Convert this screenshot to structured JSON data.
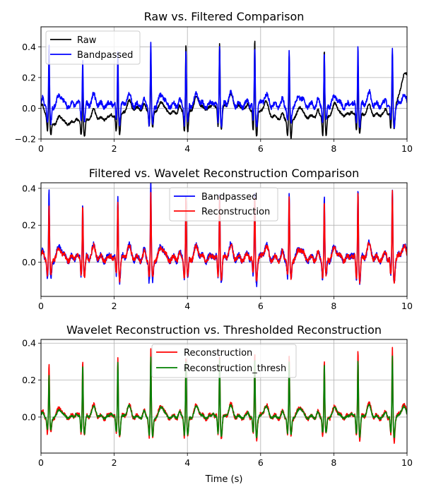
{
  "chart_data": [
    {
      "type": "line",
      "title": "Raw vs. Filtered Comparison",
      "xlabel": "",
      "ylabel": "",
      "xlim": [
        0,
        10
      ],
      "ylim": [
        -0.2,
        0.53
      ],
      "xticks": [
        0,
        2,
        4,
        6,
        8,
        10
      ],
      "yticks": [
        -0.2,
        0.0,
        0.2,
        0.4
      ],
      "ytick_labels": [
        "−0.2",
        "0.0",
        "0.2",
        "0.4"
      ],
      "grid": true,
      "legend_position": "upper-left",
      "r_peaks": [
        0.22,
        1.14,
        2.1,
        3.0,
        3.96,
        4.88,
        5.84,
        6.78,
        7.74,
        8.66,
        9.6
      ],
      "series": [
        {
          "name": "Raw",
          "color": "#000000",
          "baseline": [
            [
              0,
              0.0
            ],
            [
              0.4,
              -0.11
            ],
            [
              1.2,
              -0.08
            ],
            [
              2.0,
              -0.06
            ],
            [
              2.6,
              0.0
            ],
            [
              3.6,
              -0.03
            ],
            [
              4.4,
              0.0
            ],
            [
              5.4,
              0.01
            ],
            [
              6.6,
              -0.07
            ],
            [
              7.6,
              -0.05
            ],
            [
              8.2,
              -0.04
            ],
            [
              9.0,
              -0.05
            ],
            [
              9.6,
              -0.03
            ],
            [
              10.0,
              0.2
            ]
          ],
          "peaks": [
            0.32,
            0.33,
            0.36,
            0.36,
            0.45,
            0.44,
            0.48,
            0.41,
            0.44,
            0.36,
            0.38
          ],
          "noise": 0.015
        },
        {
          "name": "Bandpassed",
          "color": "#0000ff",
          "baseline": [
            [
              0,
              0.02
            ],
            [
              10,
              0.02
            ]
          ],
          "peaks": [
            0.4,
            0.32,
            0.35,
            0.41,
            0.38,
            0.4,
            0.38,
            0.35,
            0.35,
            0.41,
            0.38
          ],
          "noise": 0.03
        }
      ]
    },
    {
      "type": "line",
      "title": "Filtered vs. Wavelet Reconstruction Comparison",
      "xlabel": "",
      "ylabel": "",
      "xlim": [
        0,
        10
      ],
      "ylim": [
        -0.185,
        0.43
      ],
      "xticks": [
        0,
        2,
        4,
        6,
        8,
        10
      ],
      "yticks": [
        0.0,
        0.2,
        0.4
      ],
      "ytick_labels": [
        "0.0",
        "0.2",
        "0.4"
      ],
      "grid": true,
      "legend_position": "upper-center",
      "r_peaks": [
        0.22,
        1.14,
        2.1,
        3.0,
        3.96,
        4.88,
        5.84,
        6.78,
        7.74,
        8.66,
        9.6
      ],
      "series": [
        {
          "name": "Bandpassed",
          "color": "#0000ff",
          "baseline": [
            [
              0,
              0.02
            ],
            [
              10,
              0.02
            ]
          ],
          "peaks": [
            0.38,
            0.32,
            0.35,
            0.41,
            0.35,
            0.38,
            0.38,
            0.35,
            0.35,
            0.41,
            0.38
          ],
          "noise": 0.03
        },
        {
          "name": "Reconstruction",
          "color": "#ff0000",
          "baseline": [
            [
              0,
              0.02
            ],
            [
              10,
              0.02
            ]
          ],
          "peaks": [
            0.29,
            0.31,
            0.33,
            0.36,
            0.34,
            0.35,
            0.35,
            0.33,
            0.31,
            0.39,
            0.37
          ],
          "noise": 0.025
        }
      ]
    },
    {
      "type": "line",
      "title": "Wavelet Reconstruction vs. Thresholded Reconstruction",
      "xlabel": "Time (s)",
      "ylabel": "",
      "xlim": [
        0,
        10
      ],
      "ylim": [
        -0.195,
        0.42
      ],
      "xticks": [
        0,
        2,
        4,
        6,
        8,
        10
      ],
      "yticks": [
        0.0,
        0.2,
        0.4
      ],
      "ytick_labels": [
        "0.0",
        "0.2",
        "0.4"
      ],
      "grid": true,
      "legend_position": "upper-center",
      "r_peaks": [
        0.22,
        1.14,
        2.1,
        3.0,
        3.96,
        4.88,
        5.84,
        6.78,
        7.74,
        8.66,
        9.6
      ],
      "series": [
        {
          "name": "Reconstruction",
          "color": "#ff0000",
          "baseline": [
            [
              0,
              0.0
            ],
            [
              10,
              0.0
            ]
          ],
          "peaks": [
            0.29,
            0.32,
            0.33,
            0.36,
            0.34,
            0.35,
            0.35,
            0.33,
            0.31,
            0.38,
            0.38
          ],
          "noise": 0.02
        },
        {
          "name": "Reconstruction_thresh",
          "color": "#008000",
          "baseline": [
            [
              0,
              0.0
            ],
            [
              10,
              0.0
            ]
          ],
          "peaks": [
            0.23,
            0.29,
            0.31,
            0.33,
            0.32,
            0.32,
            0.32,
            0.3,
            0.29,
            0.32,
            0.33
          ],
          "noise": 0.012
        }
      ]
    }
  ]
}
